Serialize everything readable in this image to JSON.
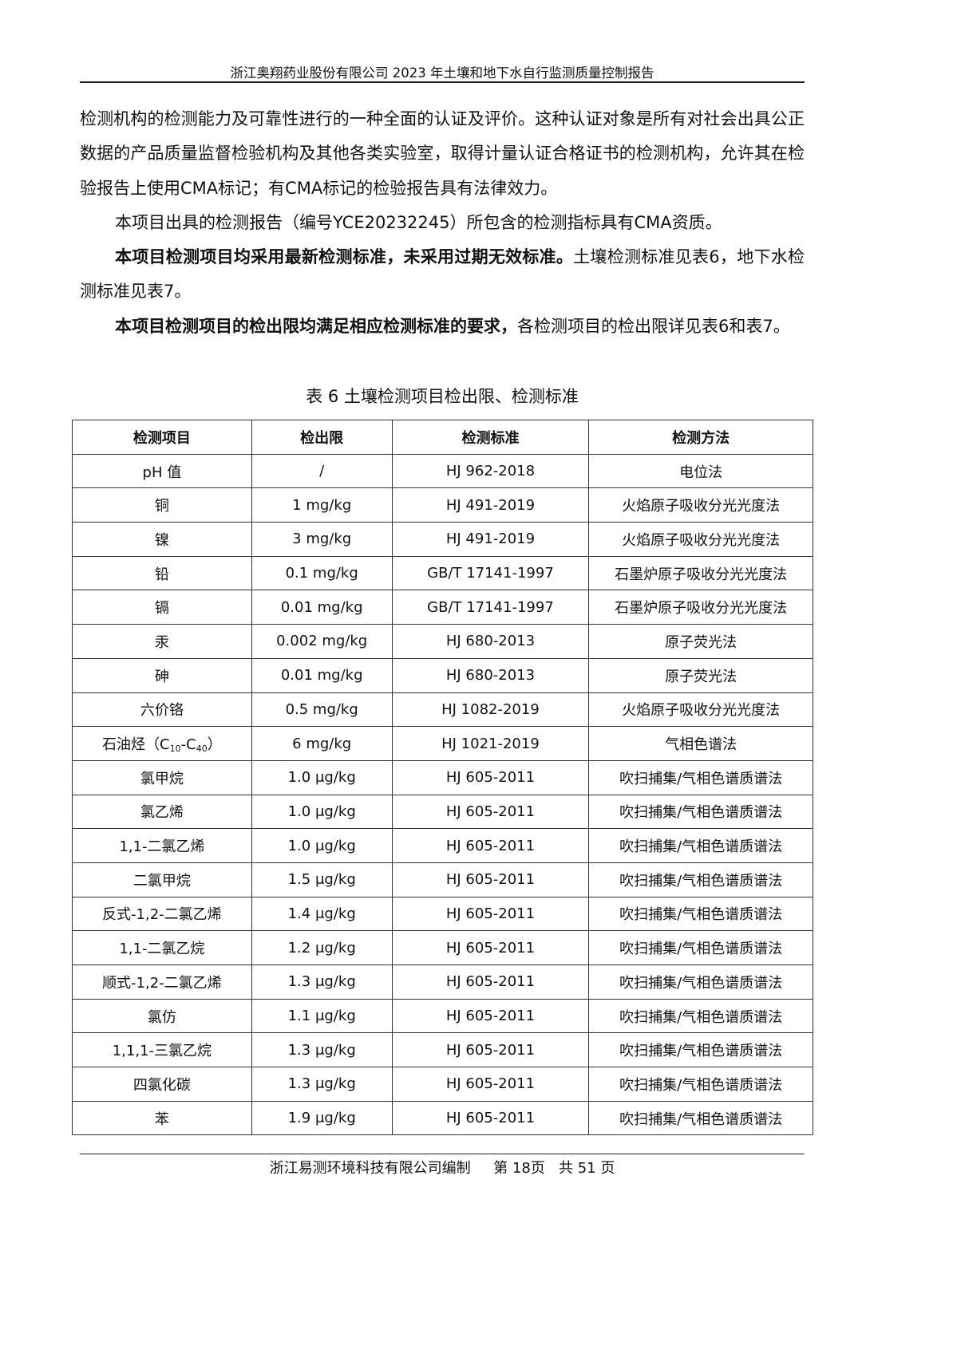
{
  "header": {
    "title": "浙江奥翔药业股份有限公司 2023 年土壤和地下水自行监测质量控制报告"
  },
  "paragraphs": [
    {
      "indent": false,
      "segments": [
        {
          "text": "检测机构的检测能力及可靠性进行的一种全面的认证及评价。这种认证对象是所有对社会出具公正数据的产品质量监督检验机构及其他各类实验室，取得计量认证合格证书的检测机构，允许其在检验报告上使用CMA标记；有CMA标记的检验报告具有法律效力。",
          "bold": false
        }
      ]
    },
    {
      "indent": true,
      "segments": [
        {
          "text": "本项目出具的检测报告（编号YCE20232245）所包含的检测指标具有CMA资质。",
          "bold": false
        }
      ]
    },
    {
      "indent": true,
      "segments": [
        {
          "text": "本项目检测项目均采用最新检测标准，未采用过期无效标准。",
          "bold": true
        },
        {
          "text": "土壤检测标准见表6，地下水检测标准见表7。",
          "bold": false
        }
      ]
    },
    {
      "indent": true,
      "segments": [
        {
          "text": "本项目检测项目的检出限均满足相应检测标准的要求，",
          "bold": true
        },
        {
          "text": "各检测项目的检出限详见表6和表7。",
          "bold": false
        }
      ]
    }
  ],
  "table": {
    "caption": "表 6  土壤检测项目检出限、检测标准",
    "headers": [
      "检测项目",
      "检出限",
      "检测标准",
      "检测方法"
    ],
    "rows": [
      [
        "pH 值",
        "/",
        "HJ 962-2018",
        "电位法"
      ],
      [
        "铜",
        "1 mg/kg",
        "HJ 491-2019",
        "火焰原子吸收分光光度法"
      ],
      [
        "镍",
        "3 mg/kg",
        "HJ 491-2019",
        "火焰原子吸收分光光度法"
      ],
      [
        "铅",
        "0.1 mg/kg",
        "GB/T 17141-1997",
        "石墨炉原子吸收分光光度法"
      ],
      [
        "镉",
        "0.01 mg/kg",
        "GB/T 17141-1997",
        "石墨炉原子吸收分光光度法"
      ],
      [
        "汞",
        "0.002 mg/kg",
        "HJ 680-2013",
        "原子荧光法"
      ],
      [
        "砷",
        "0.01 mg/kg",
        "HJ 680-2013",
        "原子荧光法"
      ],
      [
        "六价铬",
        "0.5 mg/kg",
        "HJ 1082-2019",
        "火焰原子吸收分光光度法"
      ],
      [
        [
          {
            "t": "石油烃（C"
          },
          {
            "t": "10",
            "sub": true
          },
          {
            "t": "-C"
          },
          {
            "t": "40",
            "sub": true
          },
          {
            "t": "）"
          }
        ],
        "6 mg/kg",
        "HJ 1021-2019",
        "气相色谱法"
      ],
      [
        "氯甲烷",
        "1.0 μg/kg",
        "HJ 605-2011",
        "吹扫捕集/气相色谱质谱法"
      ],
      [
        "氯乙烯",
        "1.0 μg/kg",
        "HJ 605-2011",
        "吹扫捕集/气相色谱质谱法"
      ],
      [
        "1,1-二氯乙烯",
        "1.0 μg/kg",
        "HJ 605-2011",
        "吹扫捕集/气相色谱质谱法"
      ],
      [
        "二氯甲烷",
        "1.5 μg/kg",
        "HJ 605-2011",
        "吹扫捕集/气相色谱质谱法"
      ],
      [
        "反式-1,2-二氯乙烯",
        "1.4 μg/kg",
        "HJ 605-2011",
        "吹扫捕集/气相色谱质谱法"
      ],
      [
        "1,1-二氯乙烷",
        "1.2 μg/kg",
        "HJ 605-2011",
        "吹扫捕集/气相色谱质谱法"
      ],
      [
        "顺式-1,2-二氯乙烯",
        "1.3 μg/kg",
        "HJ 605-2011",
        "吹扫捕集/气相色谱质谱法"
      ],
      [
        "氯仿",
        "1.1 μg/kg",
        "HJ 605-2011",
        "吹扫捕集/气相色谱质谱法"
      ],
      [
        "1,1,1-三氯乙烷",
        "1.3 μg/kg",
        "HJ 605-2011",
        "吹扫捕集/气相色谱质谱法"
      ],
      [
        "四氯化碳",
        "1.3 μg/kg",
        "HJ 605-2011",
        "吹扫捕集/气相色谱质谱法"
      ],
      [
        "苯",
        "1.9 μg/kg",
        "HJ 605-2011",
        "吹扫捕集/气相色谱质谱法"
      ]
    ]
  },
  "footer": {
    "text": "浙江易测环境科技有限公司编制     第 18页   共 51 页"
  }
}
